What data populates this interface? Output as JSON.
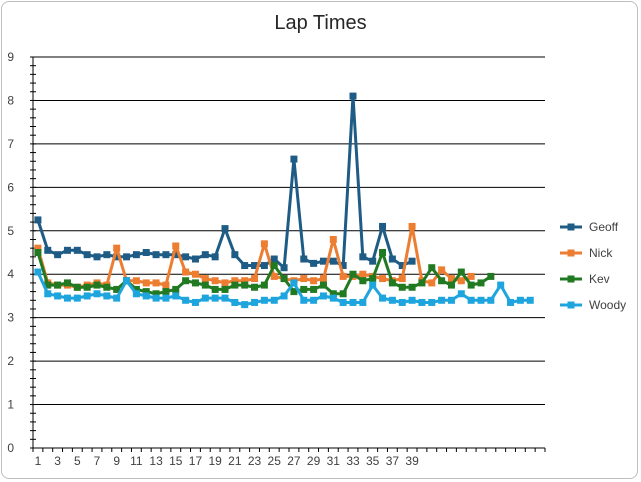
{
  "chart_data": {
    "type": "line",
    "title": "Lap Times",
    "xlabel": "",
    "ylabel": "",
    "ylim": [
      0,
      9
    ],
    "y_ticks": [
      "0",
      "1",
      "2",
      "3",
      "4",
      "5",
      "6",
      "7",
      "8",
      "9"
    ],
    "x_tick_labels": [
      "1",
      "3",
      "5",
      "7",
      "9",
      "11",
      "13",
      "15",
      "17",
      "19",
      "21",
      "23",
      "25",
      "27",
      "29",
      "31",
      "33",
      "35",
      "37",
      "39"
    ],
    "x_count": 52,
    "grid": "horizontal",
    "legend_position": "right",
    "series": [
      {
        "name": "Geoff",
        "color": "#1f5c85",
        "values": [
          5.25,
          4.55,
          4.45,
          4.55,
          4.55,
          4.45,
          4.4,
          4.45,
          4.4,
          4.4,
          4.45,
          4.5,
          4.45,
          4.45,
          4.45,
          4.4,
          4.35,
          4.45,
          4.4,
          5.05,
          4.45,
          4.2,
          4.2,
          4.2,
          4.35,
          4.15,
          6.65,
          4.35,
          4.25,
          4.3,
          4.3,
          4.2,
          8.1,
          4.4,
          4.3,
          5.1,
          4.35,
          4.2,
          4.3
        ]
      },
      {
        "name": "Nick",
        "color": "#ed7d31",
        "values": [
          4.6,
          3.8,
          3.75,
          3.75,
          3.7,
          3.75,
          3.8,
          3.75,
          4.6,
          3.85,
          3.85,
          3.8,
          3.8,
          3.75,
          4.65,
          4.05,
          4.0,
          3.9,
          3.85,
          3.8,
          3.85,
          3.85,
          3.9,
          4.7,
          3.95,
          3.9,
          3.85,
          3.9,
          3.85,
          3.9,
          4.8,
          3.95,
          3.95,
          4.0,
          3.95,
          3.9,
          3.85,
          3.9,
          5.1,
          3.85,
          3.8,
          4.1,
          3.9,
          3.85,
          3.95
        ]
      },
      {
        "name": "Kev",
        "color": "#217a21",
        "values": [
          4.5,
          3.75,
          3.75,
          3.8,
          3.7,
          3.7,
          3.75,
          3.7,
          3.65,
          3.85,
          3.65,
          3.6,
          3.55,
          3.6,
          3.65,
          3.85,
          3.8,
          3.75,
          3.65,
          3.65,
          3.75,
          3.75,
          3.7,
          3.75,
          4.2,
          3.9,
          3.6,
          3.65,
          3.65,
          3.75,
          3.55,
          3.55,
          4.0,
          3.85,
          3.9,
          4.5,
          3.8,
          3.7,
          3.7,
          3.8,
          4.15,
          3.85,
          3.75,
          4.05,
          3.75,
          3.8,
          3.95
        ]
      },
      {
        "name": "Woody",
        "color": "#1ea5de",
        "values": [
          4.05,
          3.55,
          3.5,
          3.45,
          3.45,
          3.5,
          3.55,
          3.5,
          3.45,
          3.85,
          3.55,
          3.5,
          3.45,
          3.45,
          3.5,
          3.4,
          3.35,
          3.45,
          3.45,
          3.45,
          3.35,
          3.3,
          3.35,
          3.4,
          3.4,
          3.5,
          3.8,
          3.4,
          3.4,
          3.5,
          3.45,
          3.35,
          3.35,
          3.35,
          3.75,
          3.45,
          3.4,
          3.35,
          3.4,
          3.35,
          3.35,
          3.4,
          3.4,
          3.55,
          3.4,
          3.4,
          3.4,
          3.75,
          3.35,
          3.4,
          3.4
        ]
      }
    ]
  }
}
